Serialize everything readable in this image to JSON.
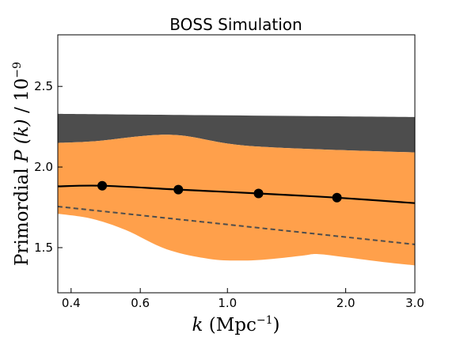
{
  "chart_data": {
    "type": "line",
    "title": "BOSS Simulation",
    "xlabel": {
      "symbol": "k",
      "unit_base": "(Mpc",
      "unit_exp": "−1",
      "unit_close": ")"
    },
    "ylabel": {
      "prefix": "Primordial",
      "symbol": "P (k)",
      "scale_base": "/ 10",
      "scale_exp": "−9"
    },
    "x_scale": "log",
    "xlim": [
      0.37,
      3.0
    ],
    "ylim": [
      1.22,
      2.82
    ],
    "xticks": [
      {
        "value": 0.4,
        "label": "0.4"
      },
      {
        "value": 0.6,
        "label": "0.6"
      },
      {
        "value": 1.0,
        "label": "1.0"
      },
      {
        "value": 2.0,
        "label": "2.0"
      },
      {
        "value": 3.0,
        "label": "3.0"
      }
    ],
    "yticks": [
      {
        "value": 1.5,
        "label": "1.5"
      },
      {
        "value": 2.0,
        "label": "2.0"
      },
      {
        "value": 2.5,
        "label": "2.5"
      }
    ],
    "gray_band": {
      "color": "#4d4d4d",
      "upper": [
        [
          0.37,
          2.33
        ],
        [
          3.0,
          2.31
        ]
      ],
      "lower": [
        [
          0.37,
          2.15
        ],
        [
          0.46,
          2.16
        ],
        [
          0.72,
          2.2
        ],
        [
          1.15,
          2.13
        ],
        [
          3.0,
          2.09
        ]
      ]
    },
    "orange_band": {
      "color": "#ffa04b",
      "upper": [
        [
          0.37,
          2.15
        ],
        [
          0.46,
          2.16
        ],
        [
          0.72,
          2.2
        ],
        [
          1.15,
          2.13
        ],
        [
          3.0,
          2.09
        ]
      ],
      "lower": [
        [
          0.37,
          1.71
        ],
        [
          0.45,
          1.68
        ],
        [
          0.55,
          1.61
        ],
        [
          0.7,
          1.49
        ],
        [
          0.9,
          1.43
        ],
        [
          1.1,
          1.42
        ],
        [
          1.3,
          1.43
        ],
        [
          1.55,
          1.45
        ],
        [
          1.7,
          1.46
        ],
        [
          2.0,
          1.44
        ],
        [
          2.5,
          1.41
        ],
        [
          3.0,
          1.39
        ]
      ]
    },
    "series": [
      {
        "style": "solid",
        "color": "#000000",
        "x": [
          0.37,
          0.48,
          0.75,
          1.2,
          1.9,
          3.0
        ],
        "y": [
          1.88,
          1.884,
          1.86,
          1.836,
          1.81,
          1.776
        ]
      },
      {
        "style": "dashed",
        "color": "#4d4d4d",
        "x": [
          0.37,
          3.0
        ],
        "y": [
          1.755,
          1.52
        ]
      }
    ],
    "markers": {
      "color": "#000000",
      "x": [
        0.48,
        0.75,
        1.2,
        1.9
      ],
      "y": [
        1.884,
        1.86,
        1.836,
        1.81
      ]
    },
    "grid": false,
    "legend": "none"
  }
}
